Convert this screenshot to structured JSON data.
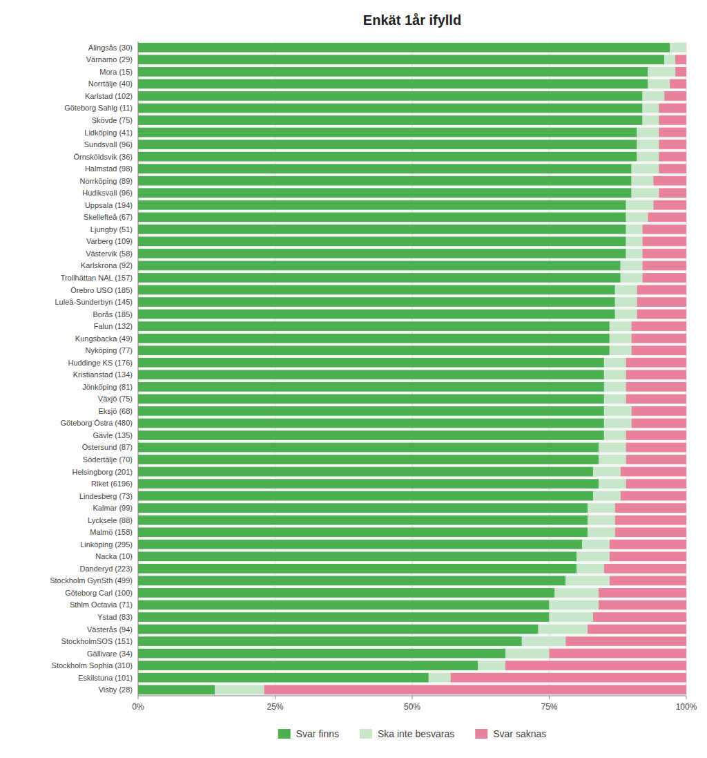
{
  "chart_data": {
    "type": "bar",
    "orientation": "horizontal",
    "stacked": true,
    "title": "Enkät 1år ifylld",
    "categories": [
      "Alingsås (30)",
      "Värnamo (29)",
      "Mora (15)",
      "Norrtälje (40)",
      "Karlstad (102)",
      "Göteborg Sahlg (11)",
      "Skövde (75)",
      "Lidköping (41)",
      "Sundsvall (96)",
      "Örnsköldsvik (36)",
      "Halmstad (98)",
      "Norrköping (89)",
      "Hudiksvall (96)",
      "Uppsala (194)",
      "Skellefteå (67)",
      "Ljungby (51)",
      "Varberg (109)",
      "Västervik (58)",
      "Karlskrona (92)",
      "Trollhättan NAL (157)",
      "Örebro USO (185)",
      "Luleå-Sunderbyn (145)",
      "Borås (185)",
      "Falun (132)",
      "Kungsbacka (49)",
      "Nyköping (77)",
      "Huddinge KS (176)",
      "Kristianstad (134)",
      "Jönköping (81)",
      "Växjö (75)",
      "Eksjö (68)",
      "Göteborg Östra (480)",
      "Gävle (135)",
      "Östersund (87)",
      "Södertälje (70)",
      "Helsingborg (201)",
      "Riket (6196)",
      "Lindesberg (73)",
      "Kalmar (99)",
      "Lycksele (88)",
      "Malmö (158)",
      "Linköping (295)",
      "Nacka (10)",
      "Danderyd (223)",
      "Stockholm GynSth (499)",
      "Göteborg Carl (100)",
      "Sthlm Octavia (71)",
      "Ystad (83)",
      "Västerås (94)",
      "StockholmSOS (151)",
      "Gällivare (34)",
      "Stockholm Sophia (310)",
      "Eskilstuna (101)",
      "Visby (28)"
    ],
    "series": [
      {
        "name": "Svar finns",
        "color": "#4caf50",
        "values": [
          97,
          96,
          93,
          93,
          92,
          92,
          92,
          91,
          91,
          91,
          90,
          90,
          90,
          89,
          89,
          89,
          89,
          89,
          88,
          88,
          87,
          87,
          87,
          86,
          86,
          86,
          85,
          85,
          85,
          85,
          85,
          85,
          85,
          84,
          84,
          83,
          84,
          83,
          82,
          82,
          82,
          81,
          80,
          80,
          78,
          76,
          75,
          75,
          73,
          70,
          67,
          62,
          53,
          14
        ]
      },
      {
        "name": "Ska inte besvaras",
        "color": "#c8e6c9",
        "values": [
          3,
          2,
          5,
          4,
          4,
          3,
          3,
          4,
          4,
          4,
          5,
          4,
          5,
          5,
          4,
          3,
          3,
          3,
          4,
          4,
          4,
          4,
          4,
          4,
          4,
          4,
          4,
          4,
          4,
          4,
          5,
          5,
          4,
          5,
          5,
          5,
          5,
          5,
          5,
          5,
          5,
          5,
          6,
          5,
          8,
          8,
          9,
          8,
          9,
          8,
          8,
          5,
          4,
          9
        ]
      },
      {
        "name": "Svar saknas",
        "color": "#e8829a",
        "values": [
          0,
          2,
          2,
          3,
          4,
          5,
          5,
          5,
          5,
          5,
          5,
          6,
          5,
          6,
          7,
          8,
          8,
          8,
          8,
          8,
          9,
          9,
          9,
          10,
          10,
          10,
          11,
          11,
          11,
          11,
          10,
          10,
          11,
          11,
          11,
          12,
          11,
          12,
          13,
          13,
          13,
          14,
          14,
          15,
          14,
          16,
          16,
          17,
          18,
          22,
          25,
          33,
          43,
          77
        ]
      }
    ],
    "xlim": [
      0,
      100
    ],
    "xticks": [
      {
        "value": 0,
        "label": "0%"
      },
      {
        "value": 25,
        "label": "25%"
      },
      {
        "value": 50,
        "label": "50%"
      },
      {
        "value": 75,
        "label": "75%"
      },
      {
        "value": 100,
        "label": "100%"
      }
    ],
    "grid": true,
    "legend": "bottom"
  }
}
